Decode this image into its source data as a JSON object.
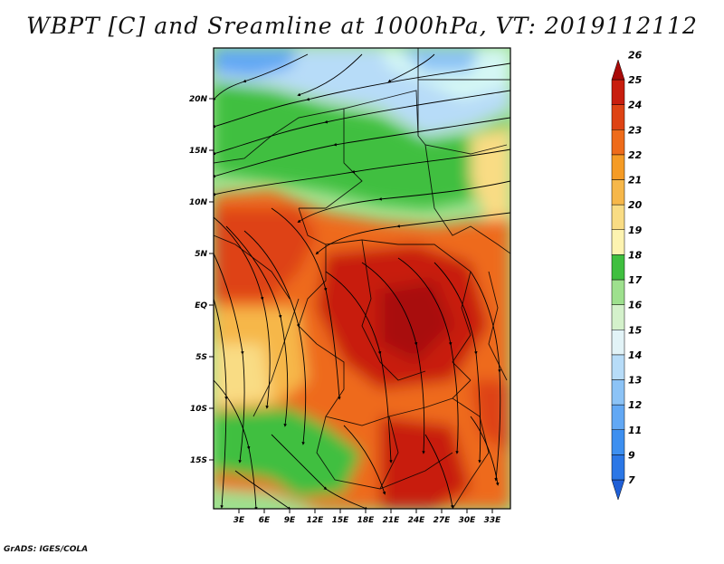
{
  "title": "WBPT [C] and Sreamline at 1000hPa, VT: 2019112112",
  "footer": "GrADS: IGES/COLA",
  "lat_labels": [
    "20N",
    "15N",
    "10N",
    "5N",
    "EQ",
    "5S",
    "10S",
    "15S"
  ],
  "lon_labels": [
    "3E",
    "6E",
    "9E",
    "12E",
    "15E",
    "18E",
    "21E",
    "24E",
    "27E",
    "30E",
    "33E"
  ],
  "colorbar": {
    "levels": [
      "7",
      "9",
      "11",
      "12",
      "13",
      "14",
      "15",
      "16",
      "17",
      "18",
      "19",
      "20",
      "21",
      "22",
      "23",
      "24",
      "25",
      "26"
    ],
    "colors": [
      "#1f5fd6",
      "#2b77e6",
      "#3d8ff0",
      "#62a8f4",
      "#8cc3f6",
      "#b7dcf8",
      "#e2f3f7",
      "#d4f1cb",
      "#9ee08e",
      "#3fbf3f",
      "#fdf3b0",
      "#f9dc84",
      "#f6b74a",
      "#f59b25",
      "#ee6b1a",
      "#de4314",
      "#c81e0e",
      "#a80a08"
    ]
  }
}
